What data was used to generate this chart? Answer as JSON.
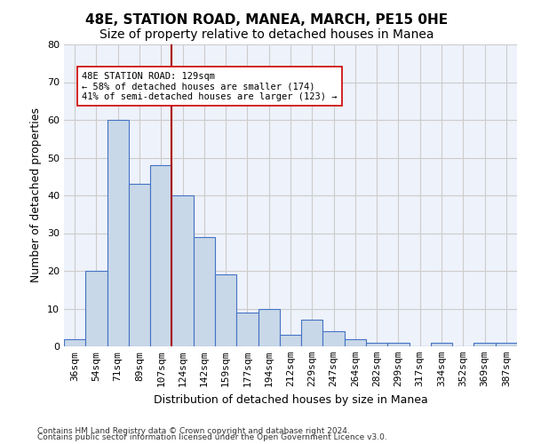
{
  "title": "48E, STATION ROAD, MANEA, MARCH, PE15 0HE",
  "subtitle": "Size of property relative to detached houses in Manea",
  "xlabel": "Distribution of detached houses by size in Manea",
  "ylabel": "Number of detached properties",
  "categories": [
    "36sqm",
    "54sqm",
    "71sqm",
    "89sqm",
    "107sqm",
    "124sqm",
    "142sqm",
    "159sqm",
    "177sqm",
    "194sqm",
    "212sqm",
    "229sqm",
    "247sqm",
    "264sqm",
    "282sqm",
    "299sqm",
    "317sqm",
    "334sqm",
    "352sqm",
    "369sqm",
    "387sqm"
  ],
  "bar_values": [
    2,
    20,
    60,
    43,
    48,
    40,
    29,
    19,
    9,
    10,
    3,
    7,
    4,
    2,
    1,
    1,
    0,
    1,
    0,
    1,
    1
  ],
  "bar_color": "#c8d8e8",
  "bar_edge_color": "#4472c4",
  "vline_color": "#aa0000",
  "ylim": [
    0,
    80
  ],
  "yticks": [
    0,
    10,
    20,
    30,
    40,
    50,
    60,
    70,
    80
  ],
  "annotation_text": "48E STATION ROAD: 129sqm\n← 58% of detached houses are smaller (174)\n41% of semi-detached houses are larger (123) →",
  "annotation_box_color": "#ffffff",
  "annotation_box_edge": "#cc0000",
  "footer1": "Contains HM Land Registry data © Crown copyright and database right 2024.",
  "footer2": "Contains public sector information licensed under the Open Government Licence v3.0.",
  "grid_color": "#cccccc",
  "bg_color": "#eef2fa",
  "title_fontsize": 11,
  "subtitle_fontsize": 10,
  "tick_fontsize": 8,
  "ylabel_fontsize": 9,
  "xlabel_fontsize": 9
}
